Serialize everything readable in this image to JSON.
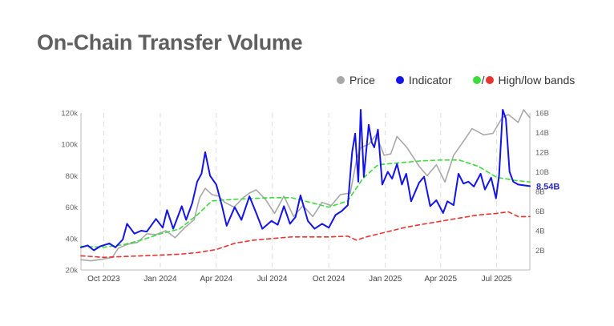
{
  "title": "On-Chain Transfer Volume",
  "legend": {
    "price": "Price",
    "indicator": "Indicator",
    "bands": "High/low bands",
    "slash": "/"
  },
  "colors": {
    "price": "#a8a8a8",
    "indicator": "#1414e6",
    "high_band": "#3ddc3d",
    "low_band": "#e83333",
    "grid": "#dddddd",
    "label_indicator": "#2a2ad0"
  },
  "last_value_label": "8.54B",
  "chart_data": {
    "type": "line",
    "title": "On-Chain Transfer Volume",
    "x_range": [
      "2023-08-25",
      "2025-08-24"
    ],
    "x_ticks": [
      {
        "date": "2023-10-01",
        "label": "Oct 2023"
      },
      {
        "date": "2024-01-01",
        "label": "Jan 2024"
      },
      {
        "date": "2024-04-01",
        "label": "Apr 2024"
      },
      {
        "date": "2024-07-01",
        "label": "Jul 2024"
      },
      {
        "date": "2024-10-01",
        "label": "Oct 2024"
      },
      {
        "date": "2025-01-01",
        "label": "Jan 2025"
      },
      {
        "date": "2025-04-01",
        "label": "Apr 2025"
      },
      {
        "date": "2025-07-01",
        "label": "Jul 2025"
      }
    ],
    "left_axis": {
      "min": 20000,
      "max": 120000,
      "ticks": [
        20000,
        40000,
        60000,
        80000,
        100000,
        120000
      ],
      "tick_labels": [
        "20k",
        "40k",
        "60k",
        "80k",
        "100k",
        "120k"
      ]
    },
    "right_axis": {
      "min": 0,
      "max": 16000000000,
      "ticks": [
        2000000000,
        4000000000,
        6000000000,
        8000000000,
        10000000000,
        12000000000,
        14000000000,
        16000000000
      ],
      "tick_labels": [
        "2B",
        "4B",
        "6B",
        "8B",
        "10B",
        "12B",
        "14B",
        "16B"
      ]
    },
    "grid": "vertical dashed at x ticks",
    "legend_position": "top-right",
    "series": [
      {
        "name": "Price",
        "axis": "left",
        "style": "solid",
        "color": "#a8a8a8",
        "points": [
          [
            "2023-08-25",
            26500
          ],
          [
            "2023-09-10",
            25800
          ],
          [
            "2023-09-25",
            26600
          ],
          [
            "2023-10-15",
            28000
          ],
          [
            "2023-10-25",
            34000
          ],
          [
            "2023-11-10",
            36500
          ],
          [
            "2023-11-25",
            37500
          ],
          [
            "2023-12-10",
            43000
          ],
          [
            "2023-12-25",
            42500
          ],
          [
            "2024-01-10",
            45000
          ],
          [
            "2024-01-25",
            40500
          ],
          [
            "2024-02-10",
            47000
          ],
          [
            "2024-02-25",
            52000
          ],
          [
            "2024-03-05",
            66000
          ],
          [
            "2024-03-14",
            72000
          ],
          [
            "2024-03-25",
            68000
          ],
          [
            "2024-04-05",
            67000
          ],
          [
            "2024-04-15",
            63000
          ],
          [
            "2024-04-30",
            60000
          ],
          [
            "2024-05-15",
            66000
          ],
          [
            "2024-05-25",
            69000
          ],
          [
            "2024-06-05",
            71000
          ],
          [
            "2024-06-20",
            65000
          ],
          [
            "2024-07-05",
            56000
          ],
          [
            "2024-07-20",
            67000
          ],
          [
            "2024-08-05",
            54000
          ],
          [
            "2024-08-20",
            61000
          ],
          [
            "2024-09-05",
            54000
          ],
          [
            "2024-09-20",
            63000
          ],
          [
            "2024-10-05",
            61000
          ],
          [
            "2024-10-20",
            68000
          ],
          [
            "2024-11-05",
            69000
          ],
          [
            "2024-11-15",
            90000
          ],
          [
            "2024-11-22",
            98000
          ],
          [
            "2024-12-05",
            100000
          ],
          [
            "2024-12-17",
            106000
          ],
          [
            "2024-12-30",
            93000
          ],
          [
            "2025-01-10",
            94000
          ],
          [
            "2025-01-20",
            105000
          ],
          [
            "2025-02-05",
            98000
          ],
          [
            "2025-02-25",
            86000
          ],
          [
            "2025-03-10",
            80000
          ],
          [
            "2025-03-25",
            87000
          ],
          [
            "2025-04-08",
            76000
          ],
          [
            "2025-04-22",
            93000
          ],
          [
            "2025-05-10",
            103000
          ],
          [
            "2025-05-22",
            110000
          ],
          [
            "2025-06-10",
            106000
          ],
          [
            "2025-06-25",
            107000
          ],
          [
            "2025-07-10",
            117000
          ],
          [
            "2025-07-20",
            119000
          ],
          [
            "2025-08-05",
            114000
          ],
          [
            "2025-08-14",
            122000
          ],
          [
            "2025-08-24",
            117000
          ]
        ]
      },
      {
        "name": "Indicator",
        "axis": "right",
        "style": "solid",
        "color": "#1414e6",
        "points": [
          [
            "2023-08-25",
            2300000000
          ],
          [
            "2023-09-05",
            2500000000
          ],
          [
            "2023-09-15",
            2000000000
          ],
          [
            "2023-09-25",
            2400000000
          ],
          [
            "2023-10-10",
            2700000000
          ],
          [
            "2023-10-20",
            2300000000
          ],
          [
            "2023-11-01",
            3100000000
          ],
          [
            "2023-11-08",
            4700000000
          ],
          [
            "2023-11-20",
            3700000000
          ],
          [
            "2023-12-01",
            4000000000
          ],
          [
            "2023-12-10",
            3900000000
          ],
          [
            "2023-12-25",
            5200000000
          ],
          [
            "2024-01-05",
            4300000000
          ],
          [
            "2024-01-12",
            6100000000
          ],
          [
            "2024-01-22",
            4200000000
          ],
          [
            "2024-02-05",
            6500000000
          ],
          [
            "2024-02-12",
            5100000000
          ],
          [
            "2024-02-22",
            6800000000
          ],
          [
            "2024-03-01",
            9000000000
          ],
          [
            "2024-03-08",
            9800000000
          ],
          [
            "2024-03-14",
            12000000000
          ],
          [
            "2024-03-22",
            9600000000
          ],
          [
            "2024-04-01",
            8700000000
          ],
          [
            "2024-04-10",
            6600000000
          ],
          [
            "2024-04-18",
            4500000000
          ],
          [
            "2024-05-01",
            6400000000
          ],
          [
            "2024-05-12",
            5100000000
          ],
          [
            "2024-05-25",
            7500000000
          ],
          [
            "2024-06-05",
            5800000000
          ],
          [
            "2024-06-15",
            4200000000
          ],
          [
            "2024-06-30",
            5000000000
          ],
          [
            "2024-07-10",
            4600000000
          ],
          [
            "2024-07-20",
            6500000000
          ],
          [
            "2024-07-30",
            4700000000
          ],
          [
            "2024-08-08",
            5400000000
          ],
          [
            "2024-08-16",
            7600000000
          ],
          [
            "2024-08-28",
            5000000000
          ],
          [
            "2024-09-08",
            4200000000
          ],
          [
            "2024-09-20",
            4700000000
          ],
          [
            "2024-10-01",
            4300000000
          ],
          [
            "2024-10-12",
            5600000000
          ],
          [
            "2024-10-22",
            6000000000
          ],
          [
            "2024-11-01",
            6600000000
          ],
          [
            "2024-11-08",
            12000000000
          ],
          [
            "2024-11-13",
            13900000000
          ],
          [
            "2024-11-18",
            9000000000
          ],
          [
            "2024-11-22",
            16800000000
          ],
          [
            "2024-11-27",
            9500000000
          ],
          [
            "2024-12-05",
            14800000000
          ],
          [
            "2024-12-10",
            13000000000
          ],
          [
            "2024-12-14",
            12500000000
          ],
          [
            "2024-12-20",
            14300000000
          ],
          [
            "2024-12-27",
            8700000000
          ],
          [
            "2025-01-05",
            10000000000
          ],
          [
            "2025-01-12",
            9300000000
          ],
          [
            "2025-01-20",
            10800000000
          ],
          [
            "2025-01-28",
            8700000000
          ],
          [
            "2025-02-04",
            9800000000
          ],
          [
            "2025-02-12",
            7000000000
          ],
          [
            "2025-02-25",
            8900000000
          ],
          [
            "2025-03-05",
            9500000000
          ],
          [
            "2025-03-15",
            6500000000
          ],
          [
            "2025-03-25",
            7100000000
          ],
          [
            "2025-04-05",
            5800000000
          ],
          [
            "2025-04-12",
            7000000000
          ],
          [
            "2025-04-22",
            6600000000
          ],
          [
            "2025-04-30",
            9800000000
          ],
          [
            "2025-05-08",
            8800000000
          ],
          [
            "2025-05-16",
            9000000000
          ],
          [
            "2025-05-25",
            8500000000
          ],
          [
            "2025-06-05",
            9800000000
          ],
          [
            "2025-06-12",
            8200000000
          ],
          [
            "2025-06-22",
            9400000000
          ],
          [
            "2025-06-30",
            7300000000
          ],
          [
            "2025-07-05",
            9600000000
          ],
          [
            "2025-07-11",
            16800000000
          ],
          [
            "2025-07-16",
            15400000000
          ],
          [
            "2025-07-22",
            10000000000
          ],
          [
            "2025-07-28",
            9000000000
          ],
          [
            "2025-08-05",
            8700000000
          ],
          [
            "2025-08-24",
            8540000000
          ]
        ]
      },
      {
        "name": "High band",
        "axis": "left",
        "style": "dashed",
        "color": "#3ddc3d",
        "points": [
          [
            "2023-08-25",
            35000
          ],
          [
            "2023-10-01",
            34500
          ],
          [
            "2023-11-01",
            36000
          ],
          [
            "2023-12-01",
            39000
          ],
          [
            "2024-01-01",
            43000
          ],
          [
            "2024-02-01",
            46000
          ],
          [
            "2024-03-01",
            55000
          ],
          [
            "2024-03-25",
            64000
          ],
          [
            "2024-05-01",
            65000
          ],
          [
            "2024-06-01",
            65500
          ],
          [
            "2024-07-01",
            66000
          ],
          [
            "2024-08-01",
            66000
          ],
          [
            "2024-09-01",
            63000
          ],
          [
            "2024-10-01",
            60000
          ],
          [
            "2024-11-01",
            64000
          ],
          [
            "2024-11-25",
            78000
          ],
          [
            "2024-12-20",
            87000
          ],
          [
            "2025-02-01",
            88500
          ],
          [
            "2025-03-01",
            89500
          ],
          [
            "2025-04-01",
            90000
          ],
          [
            "2025-05-01",
            90000
          ],
          [
            "2025-06-01",
            86000
          ],
          [
            "2025-07-01",
            79000
          ],
          [
            "2025-08-01",
            77000
          ],
          [
            "2025-08-24",
            76000
          ]
        ]
      },
      {
        "name": "Low band",
        "axis": "left",
        "style": "dashed",
        "color": "#e83333",
        "points": [
          [
            "2023-08-25",
            29000
          ],
          [
            "2023-10-01",
            28000
          ],
          [
            "2023-11-01",
            28500
          ],
          [
            "2023-12-01",
            29000
          ],
          [
            "2024-01-01",
            29500
          ],
          [
            "2024-02-01",
            30000
          ],
          [
            "2024-03-01",
            31000
          ],
          [
            "2024-04-01",
            33000
          ],
          [
            "2024-05-01",
            37000
          ],
          [
            "2024-06-01",
            39000
          ],
          [
            "2024-07-01",
            40000
          ],
          [
            "2024-08-01",
            41000
          ],
          [
            "2024-09-01",
            41000
          ],
          [
            "2024-10-01",
            41000
          ],
          [
            "2024-11-01",
            41500
          ],
          [
            "2024-11-15",
            39000
          ],
          [
            "2024-12-01",
            41000
          ],
          [
            "2025-01-01",
            44000
          ],
          [
            "2025-02-01",
            47000
          ],
          [
            "2025-03-01",
            49000
          ],
          [
            "2025-04-01",
            51000
          ],
          [
            "2025-05-01",
            53000
          ],
          [
            "2025-06-01",
            55000
          ],
          [
            "2025-07-01",
            56000
          ],
          [
            "2025-07-20",
            57000
          ],
          [
            "2025-08-05",
            54000
          ],
          [
            "2025-08-24",
            54000
          ]
        ]
      }
    ]
  }
}
